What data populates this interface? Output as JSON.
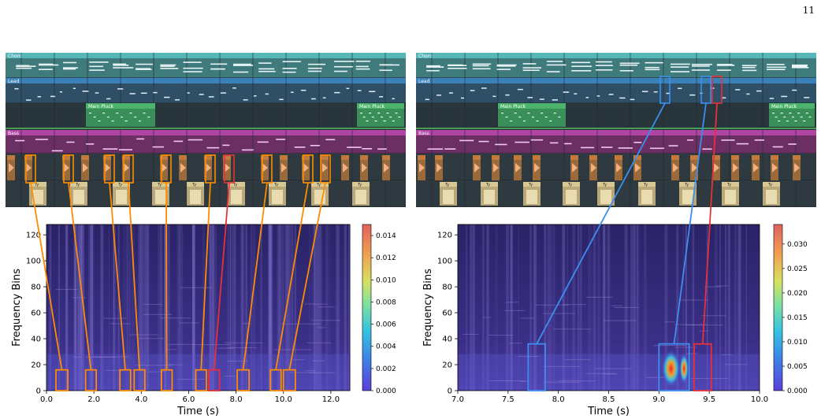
{
  "page_number": "11",
  "daw_panels": [
    {
      "tracks": [
        {
          "name": "Chord",
          "color": "#56b7b9"
        },
        {
          "name": "Lead",
          "color": "#3a80b9"
        },
        {
          "name": "Main Pluck",
          "color": "#4bb36a"
        },
        {
          "name": "Bass",
          "color": "#b044a2"
        }
      ],
      "clip_label": "Main Pluck",
      "drum_label": "Ty"
    },
    {
      "tracks": [
        {
          "name": "Chord",
          "color": "#56b7b9"
        },
        {
          "name": "Lead",
          "color": "#3a80b9"
        },
        {
          "name": "Main Pluck",
          "color": "#4bb36a"
        },
        {
          "name": "Bass",
          "color": "#b044a2"
        }
      ],
      "clip_label": "Main Pluck",
      "drum_label": "Ty"
    }
  ],
  "chart_data": [
    {
      "type": "heatmap",
      "xlabel": "Time (s)",
      "ylabel": "Frequency Bins",
      "xlim": [
        0,
        12.8
      ],
      "ylim": [
        0,
        128
      ],
      "x_ticks": [
        "0.0",
        "2.0",
        "4.0",
        "6.0",
        "8.0",
        "10.0",
        "12.0"
      ],
      "x_tick_values": [
        0,
        2,
        4,
        6,
        8,
        10,
        12
      ],
      "y_ticks": [
        "0",
        "20",
        "40",
        "60",
        "80",
        "100",
        "120"
      ],
      "y_tick_values": [
        0,
        20,
        40,
        60,
        80,
        100,
        120
      ],
      "colorbar_ticks": [
        "0.000",
        "0.002",
        "0.004",
        "0.006",
        "0.008",
        "0.010",
        "0.012",
        "0.014"
      ],
      "colorbar_values": [
        0,
        0.002,
        0.004,
        0.006,
        0.008,
        0.01,
        0.012,
        0.014
      ],
      "colorbar_max": 0.015,
      "highlight_boxes": [
        {
          "x0": 0.4,
          "x1": 0.9,
          "y0": 0,
          "y1": 16,
          "color": "#ff8c00",
          "daw_x": 26
        },
        {
          "x0": 1.65,
          "x1": 2.1,
          "y0": 0,
          "y1": 16,
          "color": "#ff8c00",
          "daw_x": 74
        },
        {
          "x0": 3.1,
          "x1": 3.55,
          "y0": 0,
          "y1": 16,
          "color": "#ff8c00",
          "daw_x": 126
        },
        {
          "x0": 3.7,
          "x1": 4.15,
          "y0": 0,
          "y1": 16,
          "color": "#ff8c00",
          "daw_x": 150
        },
        {
          "x0": 4.85,
          "x1": 5.3,
          "y0": 0,
          "y1": 16,
          "color": "#ff8c00",
          "daw_x": 198
        },
        {
          "x0": 6.3,
          "x1": 6.75,
          "y0": 0,
          "y1": 16,
          "color": "#ff8c00",
          "daw_x": 254
        },
        {
          "x0": 6.85,
          "x1": 7.3,
          "y0": 0,
          "y1": 16,
          "color": "#e8303a",
          "daw_x": 278
        },
        {
          "x0": 8.05,
          "x1": 8.55,
          "y0": 0,
          "y1": 16,
          "color": "#ff8c00",
          "daw_x": 326
        },
        {
          "x0": 9.45,
          "x1": 9.9,
          "y0": 0,
          "y1": 16,
          "color": "#ff8c00",
          "daw_x": 378
        },
        {
          "x0": 10.0,
          "x1": 10.5,
          "y0": 0,
          "y1": 16,
          "color": "#ff8c00",
          "daw_x": 400
        }
      ]
    },
    {
      "type": "heatmap",
      "xlabel": "Time (s)",
      "ylabel": "Frequency Bins",
      "xlim": [
        7.0,
        10.0
      ],
      "ylim": [
        0,
        128
      ],
      "x_ticks": [
        "7.0",
        "7.5",
        "8.0",
        "8.5",
        "9.0",
        "9.5",
        "10.0"
      ],
      "x_tick_values": [
        7.0,
        7.5,
        8.0,
        8.5,
        9.0,
        9.5,
        10.0
      ],
      "y_ticks": [
        "0",
        "20",
        "40",
        "60",
        "80",
        "100",
        "120"
      ],
      "y_tick_values": [
        0,
        20,
        40,
        60,
        80,
        100,
        120
      ],
      "colorbar_ticks": [
        "0.000",
        "0.005",
        "0.010",
        "0.015",
        "0.020",
        "0.025",
        "0.030"
      ],
      "colorbar_values": [
        0,
        0.005,
        0.01,
        0.015,
        0.02,
        0.025,
        0.03
      ],
      "colorbar_max": 0.034,
      "highlight_boxes": [
        {
          "x0": 7.7,
          "x1": 7.87,
          "y0": 0,
          "y1": 36,
          "color": "#3a8ff0",
          "daw_x": 310
        },
        {
          "x0": 9.0,
          "x1": 9.3,
          "y0": 0,
          "y1": 36,
          "color": "#3a8ff0",
          "daw_x": 362
        },
        {
          "x0": 9.35,
          "x1": 9.52,
          "y0": 0,
          "y1": 36,
          "color": "#e8303a",
          "daw_x": 376
        }
      ]
    }
  ]
}
